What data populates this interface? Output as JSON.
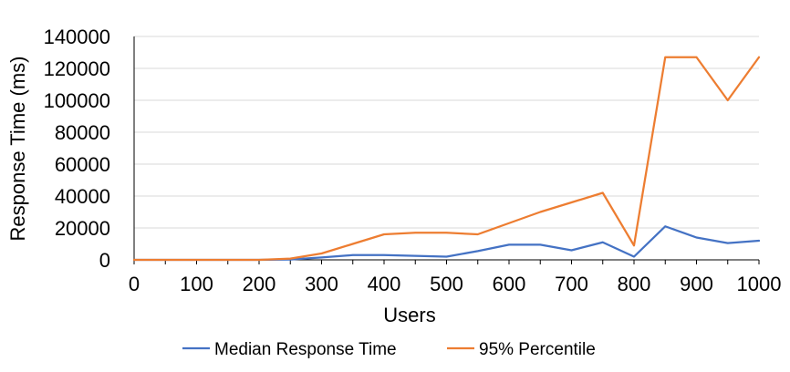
{
  "chart_data": {
    "type": "line",
    "title": "",
    "xlabel": "Users",
    "ylabel": "Response Time (ms)",
    "xlim": [
      0,
      1000
    ],
    "ylim": [
      0,
      140000
    ],
    "x_ticks": [
      0,
      100,
      200,
      300,
      400,
      500,
      600,
      700,
      800,
      900,
      1000
    ],
    "y_ticks": [
      0,
      20000,
      40000,
      60000,
      80000,
      100000,
      120000,
      140000
    ],
    "grid": "horizontal",
    "legend_position": "bottom",
    "x": [
      0,
      50,
      100,
      150,
      200,
      250,
      300,
      350,
      400,
      450,
      500,
      550,
      600,
      650,
      700,
      750,
      800,
      850,
      900,
      950,
      1000
    ],
    "series": [
      {
        "name": "Median Response Time",
        "color": "#4472C4",
        "values": [
          0,
          0,
          0,
          0,
          0,
          200,
          1500,
          3000,
          3000,
          2500,
          2000,
          5500,
          9500,
          9500,
          6000,
          11000,
          2000,
          21000,
          14000,
          10500,
          12000
        ]
      },
      {
        "name": "95% Percentile",
        "color": "#ED7D31",
        "values": [
          0,
          0,
          0,
          0,
          0,
          800,
          4000,
          10000,
          16000,
          17000,
          17000,
          16000,
          23000,
          30000,
          36000,
          42000,
          9000,
          127000,
          127000,
          100000,
          127000
        ]
      }
    ],
    "colors": {
      "grid": "#D9D9D9",
      "axis": "#000000"
    }
  }
}
